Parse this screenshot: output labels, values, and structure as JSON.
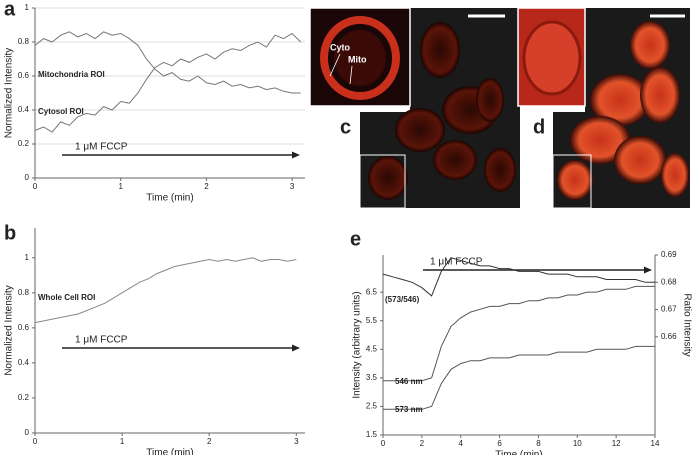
{
  "chart_data": [
    {
      "type": "line",
      "panel": "a",
      "ylabel": "Normalized Intensity",
      "xlabel": "Time (min)",
      "annotation": "1 μM FCCP",
      "x": [
        0,
        0.1,
        0.2,
        0.3,
        0.4,
        0.5,
        0.6,
        0.7,
        0.8,
        0.9,
        1.0,
        1.1,
        1.2,
        1.3,
        1.4,
        1.5,
        1.6,
        1.7,
        1.8,
        1.9,
        2.0,
        2.1,
        2.2,
        2.3,
        2.4,
        2.5,
        2.6,
        2.7,
        2.8,
        2.9,
        3.0,
        3.1
      ],
      "series": [
        {
          "name": "Mitochondria ROI",
          "color": "#777777",
          "values": [
            0.78,
            0.82,
            0.8,
            0.84,
            0.86,
            0.83,
            0.85,
            0.82,
            0.86,
            0.84,
            0.85,
            0.82,
            0.78,
            0.7,
            0.64,
            0.6,
            0.62,
            0.58,
            0.57,
            0.6,
            0.56,
            0.55,
            0.57,
            0.54,
            0.55,
            0.53,
            0.54,
            0.52,
            0.53,
            0.51,
            0.5,
            0.5
          ]
        },
        {
          "name": "Cytosol ROI",
          "color": "#777777",
          "values": [
            0.28,
            0.3,
            0.27,
            0.33,
            0.31,
            0.36,
            0.38,
            0.37,
            0.42,
            0.4,
            0.45,
            0.44,
            0.5,
            0.58,
            0.65,
            0.68,
            0.66,
            0.7,
            0.68,
            0.71,
            0.73,
            0.7,
            0.74,
            0.76,
            0.75,
            0.78,
            0.8,
            0.77,
            0.84,
            0.82,
            0.85,
            0.8
          ]
        }
      ],
      "xlim": [
        0,
        3.15
      ],
      "xticks": [
        0,
        1,
        2,
        3
      ],
      "ylim": [
        0,
        1
      ],
      "yticks": [
        0,
        0.2,
        0.4,
        0.6,
        0.8,
        1
      ],
      "grid": true
    },
    {
      "type": "line",
      "panel": "b",
      "ylabel": "Normalized Intensity",
      "xlabel": "Time (min)",
      "annotation": "1 μM FCCP",
      "x": [
        0,
        0.1,
        0.2,
        0.3,
        0.4,
        0.5,
        0.6,
        0.7,
        0.8,
        0.9,
        1.0,
        1.1,
        1.2,
        1.3,
        1.4,
        1.5,
        1.6,
        1.7,
        1.8,
        1.9,
        2.0,
        2.1,
        2.2,
        2.3,
        2.4,
        2.5,
        2.6,
        2.7,
        2.8,
        2.9,
        3.0
      ],
      "series": [
        {
          "name": "Whole Cell ROI",
          "color": "#888888",
          "values": [
            0.63,
            0.64,
            0.65,
            0.66,
            0.67,
            0.68,
            0.7,
            0.72,
            0.74,
            0.77,
            0.8,
            0.83,
            0.86,
            0.88,
            0.91,
            0.93,
            0.95,
            0.96,
            0.97,
            0.98,
            0.99,
            0.98,
            0.99,
            0.98,
            0.99,
            1.0,
            0.98,
            0.99,
            0.99,
            0.98,
            0.99
          ]
        }
      ],
      "xlim": [
        0,
        3.1
      ],
      "xticks": [
        0,
        1,
        2,
        3
      ],
      "ylim": [
        0,
        1.17
      ],
      "yticks": [
        0,
        0.2,
        0.4,
        0.6,
        0.8,
        1
      ],
      "grid": false
    },
    {
      "type": "line",
      "panel": "e",
      "ylabel": "Intensity (arbitrary units)",
      "y2label": "Ratio Intensity",
      "xlabel": "Time (min)",
      "annotation": "1 μM FCCP",
      "x": [
        0,
        0.5,
        1,
        1.5,
        2,
        2.5,
        3,
        3.5,
        4,
        4.5,
        5,
        5.5,
        6,
        6.5,
        7,
        7.5,
        8,
        8.5,
        9,
        9.5,
        10,
        10.5,
        11,
        11.5,
        12,
        12.5,
        13,
        13.5,
        14
      ],
      "series": [
        {
          "name": "(573/546)",
          "color": "#333333",
          "axis": "y2",
          "values": [
            0.683,
            0.682,
            0.681,
            0.68,
            0.678,
            0.675,
            0.684,
            0.689,
            0.688,
            0.687,
            0.686,
            0.686,
            0.685,
            0.685,
            0.684,
            0.684,
            0.684,
            0.683,
            0.683,
            0.683,
            0.682,
            0.682,
            0.682,
            0.681,
            0.681,
            0.681,
            0.681,
            0.68,
            0.68
          ]
        },
        {
          "name": "546 nm",
          "color": "#555555",
          "values": [
            3.4,
            3.4,
            3.4,
            3.4,
            3.4,
            3.5,
            4.6,
            5.3,
            5.6,
            5.8,
            5.9,
            6.0,
            6.0,
            6.1,
            6.1,
            6.2,
            6.2,
            6.3,
            6.3,
            6.4,
            6.4,
            6.5,
            6.5,
            6.6,
            6.6,
            6.6,
            6.7,
            6.7,
            6.7
          ]
        },
        {
          "name": "573 nm",
          "color": "#555555",
          "values": [
            2.4,
            2.4,
            2.4,
            2.4,
            2.4,
            2.5,
            3.3,
            3.8,
            4.0,
            4.1,
            4.1,
            4.2,
            4.2,
            4.2,
            4.3,
            4.3,
            4.3,
            4.3,
            4.4,
            4.4,
            4.4,
            4.4,
            4.5,
            4.5,
            4.5,
            4.5,
            4.6,
            4.6,
            4.6
          ]
        }
      ],
      "xlim": [
        0,
        14
      ],
      "xticks": [
        0,
        2,
        4,
        6,
        8,
        10,
        12,
        14
      ],
      "ylim": [
        1.5,
        7.8
      ],
      "yticks": [
        1.5,
        2.5,
        3.5,
        4.5,
        5.5,
        6.5
      ],
      "y2lim": [
        0.624,
        0.69
      ],
      "y2ticks": [
        0.66,
        0.67,
        0.68,
        0.69
      ],
      "grid": false
    }
  ],
  "images": {
    "c": {
      "panel": "c",
      "inset_labels": [
        "Cyto",
        "Mito"
      ]
    },
    "d": {
      "panel": "d"
    }
  }
}
